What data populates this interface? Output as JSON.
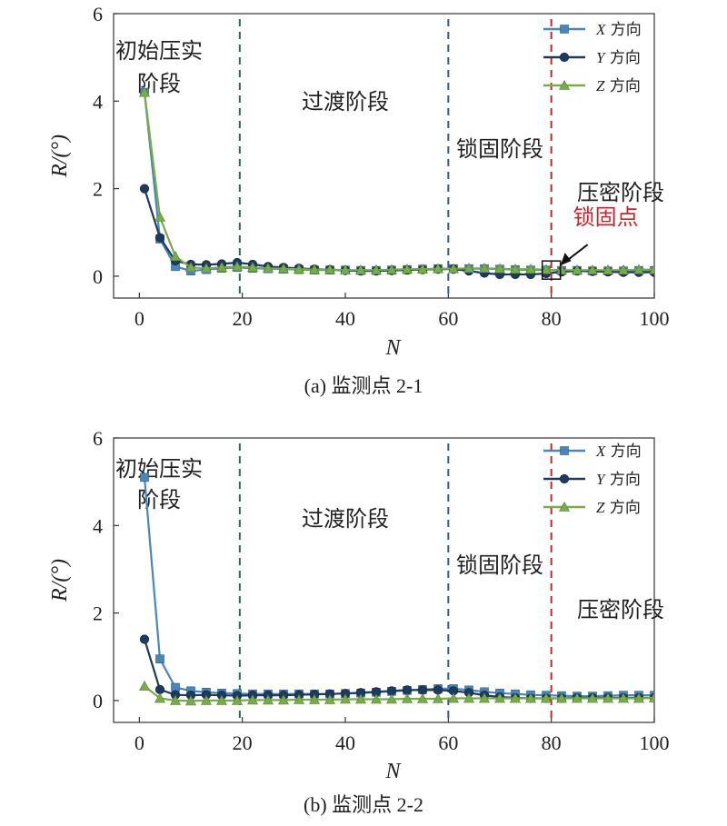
{
  "chart_data": [
    {
      "type": "line",
      "caption": "(a) 监测点 2-1",
      "xlabel": "N",
      "ylabel": "R/(°)",
      "xlim": [
        -5,
        100
      ],
      "ylim": [
        -0.5,
        6
      ],
      "xticks": [
        0,
        20,
        40,
        60,
        80,
        100
      ],
      "yticks": [
        0,
        2,
        4,
        6
      ],
      "grid": false,
      "legend_position": "top-right",
      "stage_lines": [
        {
          "x": 19.5,
          "color": "#2e6b4f"
        },
        {
          "x": 60,
          "color": "#2f5f86"
        },
        {
          "x": 80,
          "color": "#c0282d"
        }
      ],
      "stages": [
        {
          "lines": [
            "初始压实",
            "阶段"
          ]
        },
        {
          "lines": [
            "过渡阶段"
          ]
        },
        {
          "lines": [
            "锁固阶段"
          ]
        },
        {
          "lines": [
            "压密阶段"
          ]
        }
      ],
      "annotation": {
        "label": "锁固点",
        "x": 80,
        "y": 0.14
      },
      "series": [
        {
          "name": "X 方向",
          "marker": "square",
          "color": "#4a86b8",
          "x": [
            1,
            4,
            7,
            10,
            13,
            16,
            19,
            22,
            25,
            28,
            31,
            34,
            37,
            40,
            43,
            46,
            49,
            52,
            55,
            58,
            61,
            64,
            67,
            70,
            73,
            76,
            79,
            82,
            85,
            88,
            91,
            94,
            97,
            100
          ],
          "y": [
            4.2,
            0.85,
            0.22,
            0.12,
            0.15,
            0.18,
            0.2,
            0.18,
            0.17,
            0.16,
            0.15,
            0.14,
            0.14,
            0.14,
            0.13,
            0.13,
            0.14,
            0.15,
            0.16,
            0.17,
            0.17,
            0.17,
            0.17,
            0.16,
            0.15,
            0.14,
            0.14,
            0.13,
            0.13,
            0.12,
            0.12,
            0.12,
            0.13,
            0.13
          ]
        },
        {
          "name": "Y 方向",
          "marker": "circle",
          "color": "#1f3a5f",
          "x": [
            1,
            4,
            7,
            10,
            13,
            16,
            19,
            22,
            25,
            28,
            31,
            34,
            37,
            40,
            43,
            46,
            49,
            52,
            55,
            58,
            61,
            64,
            67,
            70,
            73,
            76,
            79,
            82,
            85,
            88,
            91,
            94,
            97,
            100
          ],
          "y": [
            2.0,
            0.88,
            0.35,
            0.27,
            0.26,
            0.28,
            0.31,
            0.27,
            0.22,
            0.2,
            0.18,
            0.16,
            0.15,
            0.13,
            0.12,
            0.12,
            0.13,
            0.14,
            0.15,
            0.16,
            0.16,
            0.12,
            0.07,
            0.04,
            0.04,
            0.04,
            0.06,
            0.1,
            0.12,
            0.11,
            0.1,
            0.09,
            0.09,
            0.09
          ]
        },
        {
          "name": "Z 方向",
          "marker": "triangle",
          "color": "#7aab4a",
          "x": [
            1,
            4,
            7,
            10,
            13,
            16,
            19,
            22,
            25,
            28,
            31,
            34,
            37,
            40,
            43,
            46,
            49,
            52,
            55,
            58,
            61,
            64,
            67,
            70,
            73,
            76,
            79,
            82,
            85,
            88,
            91,
            94,
            97,
            100
          ],
          "y": [
            4.2,
            1.35,
            0.45,
            0.2,
            0.18,
            0.2,
            0.22,
            0.2,
            0.18,
            0.17,
            0.16,
            0.15,
            0.15,
            0.14,
            0.14,
            0.14,
            0.15,
            0.16,
            0.16,
            0.17,
            0.17,
            0.18,
            0.18,
            0.17,
            0.16,
            0.16,
            0.15,
            0.14,
            0.14,
            0.14,
            0.14,
            0.14,
            0.15,
            0.15
          ]
        }
      ]
    },
    {
      "type": "line",
      "caption": "(b) 监测点 2-2",
      "xlabel": "N",
      "ylabel": "R/(°)",
      "xlim": [
        -5,
        100
      ],
      "ylim": [
        -0.5,
        6
      ],
      "xticks": [
        0,
        20,
        40,
        60,
        80,
        100
      ],
      "yticks": [
        0,
        2,
        4,
        6
      ],
      "grid": false,
      "legend_position": "top-right",
      "stage_lines": [
        {
          "x": 19.5,
          "color": "#2e6b4f"
        },
        {
          "x": 60,
          "color": "#2f5f86"
        },
        {
          "x": 80,
          "color": "#c0282d"
        }
      ],
      "stages": [
        {
          "lines": [
            "初始压实",
            "阶段"
          ]
        },
        {
          "lines": [
            "过渡阶段"
          ]
        },
        {
          "lines": [
            "锁固阶段"
          ]
        },
        {
          "lines": [
            "压密阶段"
          ]
        }
      ],
      "series": [
        {
          "name": "X 方向",
          "marker": "square",
          "color": "#4a86b8",
          "x": [
            1,
            4,
            7,
            10,
            13,
            16,
            19,
            22,
            25,
            28,
            31,
            34,
            37,
            40,
            43,
            46,
            49,
            52,
            55,
            58,
            61,
            64,
            67,
            70,
            73,
            76,
            79,
            82,
            85,
            88,
            91,
            94,
            97,
            100
          ],
          "y": [
            5.1,
            0.95,
            0.3,
            0.22,
            0.19,
            0.17,
            0.16,
            0.15,
            0.15,
            0.15,
            0.15,
            0.15,
            0.15,
            0.16,
            0.17,
            0.19,
            0.21,
            0.23,
            0.25,
            0.27,
            0.27,
            0.24,
            0.2,
            0.17,
            0.15,
            0.13,
            0.12,
            0.11,
            0.1,
            0.1,
            0.11,
            0.12,
            0.12,
            0.12
          ]
        },
        {
          "name": "Y 方向",
          "marker": "circle",
          "color": "#1f3a5f",
          "x": [
            1,
            4,
            7,
            10,
            13,
            16,
            19,
            22,
            25,
            28,
            31,
            34,
            37,
            40,
            43,
            46,
            49,
            52,
            55,
            58,
            61,
            64,
            67,
            70,
            73,
            76,
            79,
            82,
            85,
            88,
            91,
            94,
            97,
            100
          ],
          "y": [
            1.4,
            0.25,
            0.13,
            0.12,
            0.13,
            0.12,
            0.11,
            0.12,
            0.12,
            0.12,
            0.13,
            0.14,
            0.15,
            0.16,
            0.18,
            0.2,
            0.22,
            0.24,
            0.24,
            0.24,
            0.22,
            0.18,
            0.12,
            0.08,
            0.06,
            0.05,
            0.05,
            0.05,
            0.06,
            0.06,
            0.06,
            0.06,
            0.06,
            0.06
          ]
        },
        {
          "name": "Z 方向",
          "marker": "triangle",
          "color": "#7aab4a",
          "x": [
            1,
            4,
            7,
            10,
            13,
            16,
            19,
            22,
            25,
            28,
            31,
            34,
            37,
            40,
            43,
            46,
            49,
            52,
            55,
            58,
            61,
            64,
            67,
            70,
            73,
            76,
            79,
            82,
            85,
            88,
            91,
            94,
            97,
            100
          ],
          "y": [
            0.33,
            0.05,
            0.0,
            -0.01,
            0.0,
            0.0,
            0.0,
            0.01,
            0.01,
            0.01,
            0.02,
            0.02,
            0.02,
            0.03,
            0.03,
            0.03,
            0.03,
            0.04,
            0.04,
            0.04,
            0.05,
            0.05,
            0.05,
            0.05,
            0.05,
            0.05,
            0.05,
            0.05,
            0.05,
            0.05,
            0.05,
            0.05,
            0.05,
            0.06
          ]
        }
      ]
    }
  ]
}
